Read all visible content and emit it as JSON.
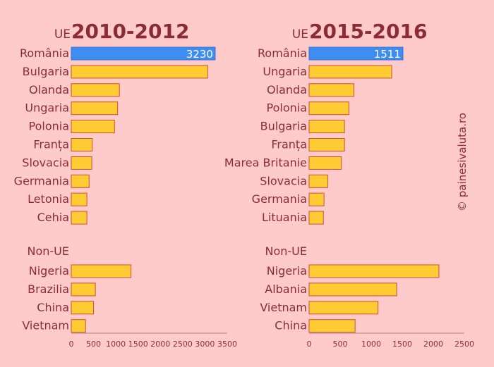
{
  "credit": "© painesivaluta.ro",
  "colors": {
    "background": "#ffcaca",
    "text": "#8b2c35",
    "bar": "#ffcc33",
    "bar_stroke": "#c8503a",
    "highlight": "#3d8ef0"
  },
  "chart_data": [
    {
      "type": "bar",
      "orientation": "horizontal",
      "title_prefix": "UE",
      "title": "2010-2012",
      "xlim": [
        0,
        3500
      ],
      "xticks": [
        0,
        500,
        1000,
        1500,
        2000,
        2500,
        3000,
        3500
      ],
      "groups": [
        {
          "label": "",
          "categories": [
            "România",
            "Bulgaria",
            "Olanda",
            "Ungaria",
            "Polonia",
            "Franța",
            "Slovacia",
            "Germania",
            "Letonia",
            "Cehia"
          ],
          "values": [
            3230,
            3060,
            1080,
            1040,
            970,
            470,
            460,
            400,
            350,
            350
          ],
          "data_labels": [
            "3230",
            "",
            "",
            "",
            "",
            "",
            "",
            "",
            "",
            ""
          ],
          "highlight": [
            true,
            false,
            false,
            false,
            false,
            false,
            false,
            false,
            false,
            false
          ]
        },
        {
          "label": "Non-UE",
          "categories": [
            "Nigeria",
            "Brazilia",
            "China",
            "Vietnam"
          ],
          "values": [
            1340,
            540,
            500,
            320
          ],
          "data_labels": [
            "",
            "",
            "",
            ""
          ],
          "highlight": [
            false,
            false,
            false,
            false
          ]
        }
      ]
    },
    {
      "type": "bar",
      "orientation": "horizontal",
      "title_prefix": "UE",
      "title": "2015-2016",
      "xlim": [
        0,
        2500
      ],
      "xticks": [
        0,
        500,
        1000,
        1500,
        2000,
        2500
      ],
      "groups": [
        {
          "label": "",
          "categories": [
            "România",
            "Ungaria",
            "Olanda",
            "Polonia",
            "Bulgaria",
            "Franța",
            "Marea Britanie",
            "Slovacia",
            "Germania",
            "Lituania"
          ],
          "values": [
            1511,
            1330,
            720,
            640,
            570,
            570,
            520,
            300,
            240,
            230
          ],
          "data_labels": [
            "1511",
            "",
            "",
            "",
            "",
            "",
            "",
            "",
            "",
            ""
          ],
          "highlight": [
            true,
            false,
            false,
            false,
            false,
            false,
            false,
            false,
            false,
            false
          ]
        },
        {
          "label": "Non-UE",
          "categories": [
            "Nigeria",
            "Albania",
            "Vietnam",
            "China"
          ],
          "values": [
            2090,
            1410,
            1110,
            740
          ],
          "data_labels": [
            "",
            "",
            "",
            ""
          ],
          "highlight": [
            false,
            false,
            false,
            false
          ]
        }
      ]
    }
  ]
}
